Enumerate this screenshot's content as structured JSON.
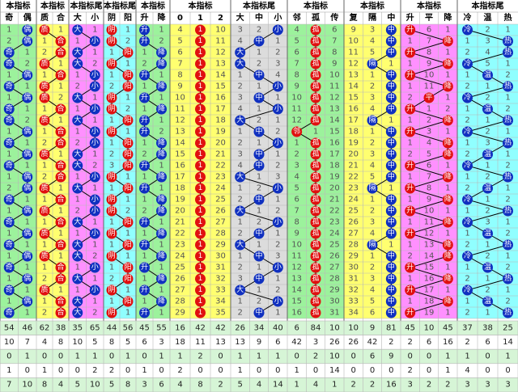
{
  "groups": [
    {
      "title": "本指标",
      "columns": [
        "奇",
        "偶"
      ],
      "color": "#1030c0",
      "bg": "#9cf29c"
    },
    {
      "title": "本指标",
      "columns": [
        "质",
        "合"
      ],
      "color": "#e01010",
      "bg": "#ffff70"
    },
    {
      "title": "本指标尾",
      "columns": [
        "大",
        "小"
      ],
      "color": "#1030c0",
      "bg": "#ff90ff"
    },
    {
      "title": "本指标尾",
      "columns": [
        "阴",
        "阳"
      ],
      "color": "#e01010",
      "bg": "#90ffff"
    },
    {
      "title": "本指标",
      "columns": [
        "升",
        "降"
      ],
      "color": "#1030c0",
      "bg": "#9cf29c"
    },
    {
      "title": "本指标",
      "columns": [
        "0",
        "1",
        "2"
      ],
      "color": "#e01010",
      "bg": "#ffff70"
    },
    {
      "title": "本指标尾",
      "columns": [
        "大",
        "中",
        "小"
      ],
      "color": "#1030c0",
      "bg": "#dcdcdc"
    },
    {
      "title": "本指标",
      "columns": [
        "邻",
        "孤",
        "传"
      ],
      "color": "#e01010",
      "bg": "#9cf29c"
    },
    {
      "title": "本指标",
      "columns": [
        "复",
        "隔",
        "中"
      ],
      "color": "#1030c0",
      "bg": "#ffff70"
    },
    {
      "title": "本指标",
      "columns": [
        "升",
        "平",
        "降"
      ],
      "color": "#e01010",
      "bg": "#ff90ff"
    },
    {
      "title": "本指标尾",
      "columns": [
        "冷",
        "温",
        "热"
      ],
      "color": "#1030c0",
      "bg": "#90ffff"
    }
  ],
  "rows": [
    [
      "1",
      "偶",
      "质",
      "1",
      "大",
      "1",
      "阴",
      "1",
      "升",
      "1",
      "4",
      "1",
      "10",
      "3",
      "2",
      "小",
      "4",
      "孤",
      "6",
      "9",
      "3",
      "中",
      "升",
      "6",
      "1",
      "冷",
      "2",
      "1"
    ],
    [
      "2",
      "偶",
      "1",
      "合",
      "1",
      "小",
      "阴",
      "2",
      "升",
      "2",
      "5",
      "1",
      "11",
      "4",
      "中",
      "1",
      "5",
      "孤",
      "7",
      "10",
      "4",
      "中",
      "1",
      "7",
      "降",
      "1",
      "3",
      "热"
    ],
    [
      "奇",
      "1",
      "2",
      "合",
      "大",
      "1",
      "1",
      "阳",
      "1",
      "降",
      "6",
      "1",
      "12",
      "大",
      "1",
      "2",
      "6",
      "孤",
      "8",
      "11",
      "5",
      "中",
      "升",
      "8",
      "1",
      "2",
      "4",
      "热"
    ],
    [
      "奇",
      "2",
      "质",
      "1",
      "大",
      "2",
      "阴",
      "1",
      "2",
      "降",
      "7",
      "1",
      "13",
      "大",
      "2",
      "3",
      "7",
      "孤",
      "9",
      "12",
      "隔",
      "1",
      "1",
      "9",
      "降",
      "冷",
      "5",
      "1"
    ],
    [
      "1",
      "偶",
      "1",
      "合",
      "1",
      "小",
      "1",
      "阳",
      "升",
      "1",
      "8",
      "1",
      "14",
      "1",
      "中",
      "4",
      "8",
      "孤",
      "10",
      "13",
      "1",
      "中",
      "升",
      "10",
      "1",
      "1",
      "温",
      "2"
    ],
    [
      "奇",
      "1",
      "质",
      "1",
      "2",
      "小",
      "2",
      "阳",
      "1",
      "降",
      "9",
      "1",
      "15",
      "2",
      "1",
      "小",
      "9",
      "孤",
      "11",
      "14",
      "2",
      "中",
      "1",
      "11",
      "降",
      "2",
      "1",
      "热"
    ],
    [
      "1",
      "偶",
      "质",
      "2",
      "大",
      "1",
      "阴",
      "1",
      "升",
      "1",
      "10",
      "1",
      "16",
      "3",
      "中",
      "1",
      "10",
      "孤",
      "12",
      "15",
      "3",
      "中",
      "2",
      "平",
      "1",
      "冷",
      "2",
      "1"
    ],
    [
      "奇",
      "1",
      "1",
      "合",
      "1",
      "小",
      "阴",
      "2",
      "1",
      "降",
      "11",
      "1",
      "17",
      "4",
      "1",
      "小",
      "11",
      "孤",
      "13",
      "16",
      "4",
      "中",
      "升",
      "1",
      "2",
      "1",
      "温",
      "2"
    ],
    [
      "奇",
      "2",
      "质",
      "1",
      "大",
      "1",
      "1",
      "阳",
      "升",
      "1",
      "12",
      "1",
      "18",
      "大",
      "2",
      "1",
      "12",
      "孤",
      "14",
      "17",
      "隔",
      "1",
      "1",
      "2",
      "降",
      "2",
      "1",
      "热"
    ],
    [
      "1",
      "偶",
      "1",
      "合",
      "1",
      "小",
      "阴",
      "1",
      "升",
      "2",
      "13",
      "1",
      "19",
      "1",
      "中",
      "2",
      "邻",
      "1",
      "15",
      "18",
      "1",
      "中",
      "升",
      "3",
      "1",
      "冷",
      "2",
      "1"
    ],
    [
      "奇",
      "1",
      "2",
      "合",
      "2",
      "小",
      "1",
      "阳",
      "1",
      "降",
      "14",
      "1",
      "20",
      "2",
      "1",
      "小",
      "1",
      "孤",
      "16",
      "19",
      "2",
      "中",
      "1",
      "4",
      "降",
      "1",
      "3",
      "热"
    ],
    [
      "1",
      "偶",
      "质",
      "1",
      "大",
      "1",
      "2",
      "阳",
      "2",
      "降",
      "15",
      "1",
      "21",
      "3",
      "中",
      "1",
      "2",
      "孤",
      "17",
      "20",
      "3",
      "中",
      "2",
      "5",
      "降",
      "2",
      "温",
      "1"
    ],
    [
      "奇",
      "1",
      "1",
      "合",
      "大",
      "2",
      "3",
      "阳",
      "升",
      "1",
      "16",
      "1",
      "22",
      "4",
      "中",
      "2",
      "3",
      "孤",
      "18",
      "21",
      "4",
      "中",
      "升",
      "6",
      "1",
      "冷",
      "1",
      "2"
    ],
    [
      "1",
      "偶",
      "2",
      "合",
      "1",
      "小",
      "阴",
      "1",
      "1",
      "降",
      "17",
      "1",
      "23",
      "大",
      "1",
      "3",
      "4",
      "孤",
      "19",
      "22",
      "5",
      "中",
      "1",
      "7",
      "降",
      "1",
      "2",
      "热"
    ],
    [
      "2",
      "偶",
      "质",
      "1",
      "大",
      "1",
      "1",
      "阳",
      "升",
      "1",
      "18",
      "1",
      "24",
      "1",
      "2",
      "小",
      "5",
      "孤",
      "20",
      "23",
      "隔",
      "1",
      "升",
      "8",
      "1",
      "2",
      "温",
      "1"
    ],
    [
      "奇",
      "1",
      "1",
      "合",
      "1",
      "小",
      "阴",
      "1",
      "1",
      "降",
      "19",
      "1",
      "25",
      "2",
      "中",
      "1",
      "6",
      "孤",
      "21",
      "24",
      "1",
      "中",
      "1",
      "9",
      "降",
      "冷",
      "1",
      "2"
    ],
    [
      "1",
      "偶",
      "质",
      "1",
      "2",
      "小",
      "阴",
      "2",
      "2",
      "降",
      "20",
      "1",
      "26",
      "大",
      "1",
      "2",
      "7",
      "孤",
      "22",
      "25",
      "2",
      "中",
      "升",
      "10",
      "1",
      "1",
      "2",
      "热"
    ],
    [
      "奇",
      "1",
      "1",
      "合",
      "大",
      "1",
      "1",
      "阳",
      "升",
      "1",
      "21",
      "1",
      "27",
      "1",
      "2",
      "小",
      "8",
      "孤",
      "23",
      "26",
      "3",
      "中",
      "1",
      "11",
      "降",
      "冷",
      "3",
      "1"
    ],
    [
      "1",
      "偶",
      "质",
      "1",
      "1",
      "小",
      "阴",
      "1",
      "1",
      "降",
      "22",
      "1",
      "28",
      "2",
      "中",
      "1",
      "9",
      "孤",
      "24",
      "27",
      "4",
      "中",
      "升",
      "12",
      "1",
      "1",
      "温",
      "2"
    ],
    [
      "奇",
      "1",
      "1",
      "合",
      "大",
      "1",
      "1",
      "阳",
      "升",
      "1",
      "23",
      "1",
      "29",
      "大",
      "1",
      "2",
      "10",
      "孤",
      "25",
      "28",
      "隔",
      "1",
      "1",
      "13",
      "降",
      "2",
      "1",
      "热"
    ],
    [
      "1",
      "偶",
      "质",
      "1",
      "大",
      "2",
      "阴",
      "1",
      "1",
      "降",
      "24",
      "1",
      "30",
      "1",
      "中",
      "3",
      "11",
      "孤",
      "26",
      "29",
      "1",
      "中",
      "2",
      "14",
      "降",
      "冷",
      "2",
      "1"
    ],
    [
      "奇",
      "1",
      "1",
      "合",
      "1",
      "小",
      "1",
      "阳",
      "升",
      "1",
      "25",
      "1",
      "31",
      "2",
      "1",
      "小",
      "12",
      "孤",
      "27",
      "30",
      "2",
      "中",
      "升",
      "15",
      "1",
      "1",
      "温",
      "2"
    ],
    [
      "1",
      "偶",
      "2",
      "合",
      "大",
      "1",
      "2",
      "阳",
      "1",
      "降",
      "26",
      "1",
      "32",
      "3",
      "中",
      "1",
      "13",
      "孤",
      "28",
      "31",
      "3",
      "中",
      "1",
      "16",
      "降",
      "2",
      "1",
      "热"
    ],
    [
      "奇",
      "1",
      "质",
      "1",
      "1",
      "小",
      "阴",
      "1",
      "升",
      "1",
      "27",
      "1",
      "33",
      "大",
      "1",
      "2",
      "14",
      "孤",
      "29",
      "32",
      "4",
      "中",
      "升",
      "17",
      "1",
      "冷",
      "2",
      "1"
    ],
    [
      "1",
      "偶",
      "1",
      "合",
      "大",
      "1",
      "1",
      "阳",
      "1",
      "降",
      "28",
      "1",
      "34",
      "1",
      "2",
      "小",
      "15",
      "孤",
      "30",
      "33",
      "5",
      "中",
      "1",
      "18",
      "降",
      "1",
      "温",
      "2"
    ],
    [
      "奇",
      "1",
      "2",
      "合",
      "大",
      "2",
      "阴",
      "1",
      "升",
      "1",
      "29",
      "1",
      "35",
      "2",
      "中",
      "1",
      "16",
      "孤",
      "31",
      "34",
      "6",
      "中",
      "升",
      "19",
      "1",
      "2",
      "1",
      "热"
    ]
  ],
  "footer": [
    [
      54,
      46,
      62,
      38,
      35,
      65,
      44,
      56,
      45,
      55,
      16,
      42,
      42,
      26,
      34,
      40,
      6,
      84,
      10,
      10,
      9,
      81,
      45,
      10,
      45,
      37,
      38,
      25
    ],
    [
      10,
      7,
      4,
      8,
      10,
      5,
      8,
      5,
      6,
      3,
      18,
      11,
      13,
      13,
      9,
      6,
      42,
      3,
      26,
      26,
      42,
      2,
      2,
      6,
      16,
      2,
      6,
      14
    ],
    [
      0,
      1,
      0,
      0,
      1,
      1,
      0,
      1,
      0,
      1,
      1,
      2,
      0,
      1,
      1,
      1,
      0,
      2,
      10,
      0,
      6,
      9,
      0,
      0,
      1,
      1,
      0,
      1
    ],
    [
      1,
      0,
      1,
      0,
      0,
      2,
      2,
      0,
      1,
      0,
      2,
      0,
      0,
      1,
      0,
      0,
      1,
      0,
      14,
      0,
      0,
      0,
      2,
      0,
      1,
      4,
      0,
      0
    ],
    [
      7,
      10,
      8,
      4,
      5,
      10,
      5,
      8,
      3,
      6,
      4,
      8,
      2,
      5,
      4,
      14,
      1,
      4,
      1,
      2,
      2,
      16,
      3,
      2,
      2,
      3,
      3,
      3
    ]
  ]
}
